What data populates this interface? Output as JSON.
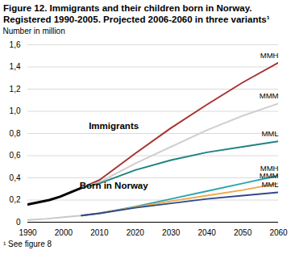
{
  "chart_data": {
    "type": "line",
    "title": "Figure 12. Immigrants and their children born in Norway.\nRegistered 1990-2005. Projected 2006-2060 in three variants¹",
    "ylabel": "Number in million",
    "note": "¹ See figure 8",
    "xlim": [
      1990,
      2060
    ],
    "xticks": [
      1990,
      2000,
      2010,
      2020,
      2030,
      2040,
      2050,
      2060
    ],
    "ylim": [
      0,
      1.6
    ],
    "yticks": [
      {
        "value": 0,
        "label": "0"
      },
      {
        "value": 0.2,
        "label": "0,2"
      },
      {
        "value": 0.4,
        "label": "0,4"
      },
      {
        "value": 0.6,
        "label": "0,6"
      },
      {
        "value": 0.8,
        "label": "0,8"
      },
      {
        "value": 1.0,
        "label": "1,0"
      },
      {
        "value": 1.2,
        "label": "1,2"
      },
      {
        "value": 1.4,
        "label": "1,4"
      },
      {
        "value": 1.6,
        "label": "1,6"
      }
    ],
    "grid": true,
    "annotations": [
      {
        "text": "Immigrants",
        "x": 2014,
        "y": 0.87
      },
      {
        "text": "Born in Norway",
        "x": 2014,
        "y": 0.33
      }
    ],
    "series": [
      {
        "color": "#000000",
        "x": [
          1990,
          1993,
          1996,
          1999,
          2002,
          2005
        ],
        "values": [
          0.16,
          0.18,
          0.2,
          0.23,
          0.27,
          0.31
        ]
      },
      {
        "color": "#c8c8c8",
        "x": [
          1990,
          1995,
          2000,
          2005
        ],
        "values": [
          0.02,
          0.03,
          0.045,
          0.06
        ]
      },
      {
        "name": "MMH",
        "color": "#a83232",
        "x": [
          2005,
          2010,
          2020,
          2030,
          2040,
          2050,
          2060
        ],
        "values": [
          0.31,
          0.38,
          0.62,
          0.85,
          1.06,
          1.26,
          1.44
        ]
      },
      {
        "name": "MMM",
        "color": "#cfcfcf",
        "x": [
          2005,
          2010,
          2020,
          2030,
          2040,
          2050,
          2060
        ],
        "values": [
          0.31,
          0.36,
          0.53,
          0.68,
          0.83,
          0.96,
          1.07
        ]
      },
      {
        "name": "MML",
        "color": "#1f8282",
        "x": [
          2005,
          2010,
          2020,
          2030,
          2040,
          2050,
          2060
        ],
        "values": [
          0.31,
          0.35,
          0.47,
          0.56,
          0.63,
          0.68,
          0.73
        ]
      },
      {
        "name": "MMH",
        "color": "#2aa6b0",
        "x": [
          2005,
          2010,
          2020,
          2030,
          2040,
          2050,
          2060
        ],
        "values": [
          0.06,
          0.08,
          0.14,
          0.21,
          0.28,
          0.35,
          0.42
        ]
      },
      {
        "name": "MMM",
        "color": "#f0a848",
        "x": [
          2005,
          2010,
          2020,
          2030,
          2040,
          2050,
          2060
        ],
        "values": [
          0.06,
          0.08,
          0.135,
          0.19,
          0.24,
          0.29,
          0.35
        ]
      },
      {
        "name": "MML",
        "color": "#2e4a8c",
        "x": [
          2005,
          2010,
          2020,
          2030,
          2040,
          2050,
          2060
        ],
        "values": [
          0.06,
          0.08,
          0.13,
          0.17,
          0.21,
          0.24,
          0.27
        ]
      }
    ]
  }
}
